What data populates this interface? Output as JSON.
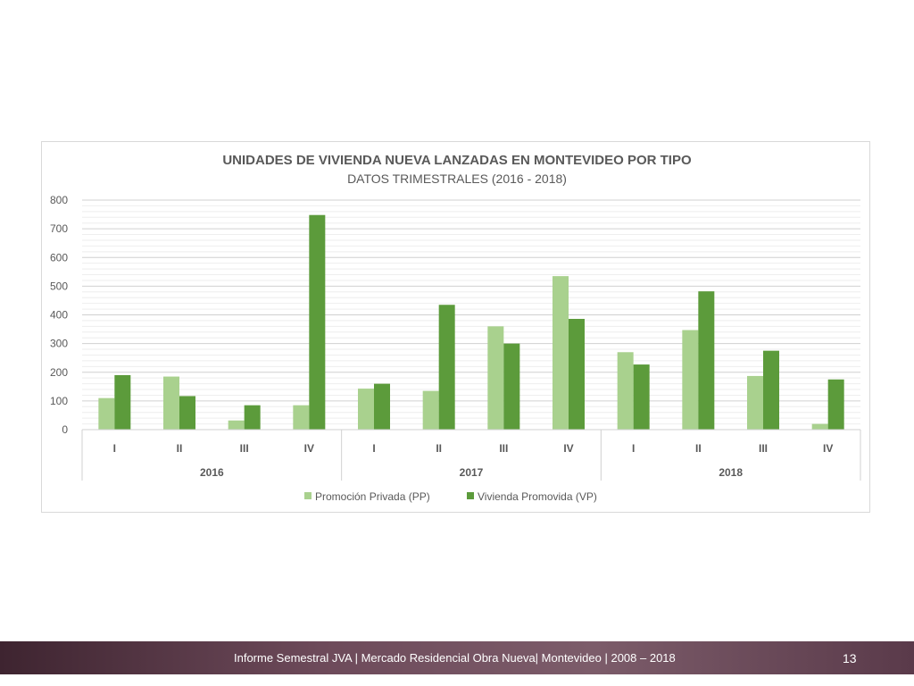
{
  "footer": {
    "text": "Informe Semestral JVA | Mercado Residencial Obra Nueva| Montevideo | 2008 – 2018",
    "page_number": "13"
  },
  "chart_data": {
    "type": "bar",
    "title": "UNIDADES DE VIVIENDA NUEVA LANZADAS EN MONTEVIDEO POR TIPO",
    "subtitle": "DATOS TRIMESTRALES (2016 - 2018)",
    "categories": [
      "I",
      "II",
      "III",
      "IV",
      "I",
      "II",
      "III",
      "IV",
      "I",
      "II",
      "III",
      "IV"
    ],
    "groups": [
      {
        "label": "2016",
        "count": 4
      },
      {
        "label": "2017",
        "count": 4
      },
      {
        "label": "2018",
        "count": 4
      }
    ],
    "series": [
      {
        "name": "Promoción Privada (PP)",
        "color": "#a9d18e",
        "values": [
          110,
          185,
          32,
          85,
          143,
          135,
          360,
          535,
          270,
          347,
          187,
          20
        ]
      },
      {
        "name": "Vivienda Promovida (VP)",
        "color": "#5c9b3b",
        "values": [
          190,
          117,
          85,
          748,
          160,
          435,
          300,
          386,
          227,
          482,
          275,
          175
        ]
      }
    ],
    "yticks": [
      "0",
      "100",
      "200",
      "300",
      "400",
      "500",
      "600",
      "700",
      "800"
    ],
    "ylim": [
      0,
      800
    ],
    "grid": true,
    "legend_position": "bottom"
  }
}
